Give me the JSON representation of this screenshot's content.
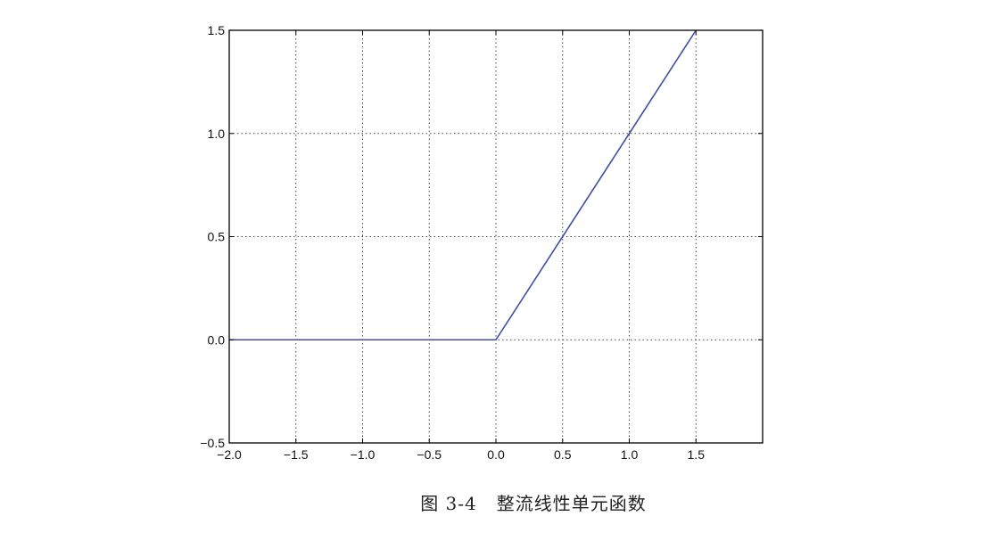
{
  "caption": {
    "figure_number": "图 3-4",
    "title": "整流线性单元函数"
  },
  "chart_data": {
    "type": "line",
    "title": "",
    "xlabel": "",
    "ylabel": "",
    "xlim": [
      -2.0,
      2.0
    ],
    "ylim": [
      -0.5,
      1.5
    ],
    "xticks": [
      -2.0,
      -1.5,
      -1.0,
      -0.5,
      0.0,
      0.5,
      1.0,
      1.5
    ],
    "xtick_labels": [
      "−2.0",
      "−1.5",
      "−1.0",
      "−0.5",
      "0.0",
      "0.5",
      "1.0",
      "1.5"
    ],
    "yticks": [
      -0.5,
      0.0,
      0.5,
      1.0,
      1.5
    ],
    "ytick_labels": [
      "−0.5",
      "0.0",
      "0.5",
      "1.0",
      "1.5"
    ],
    "grid": true,
    "grid_style": "dotted",
    "series": [
      {
        "color": "#3a4fa8",
        "x": [
          -2.0,
          0.0,
          1.5
        ],
        "y": [
          0.0,
          0.0,
          1.5
        ]
      }
    ]
  }
}
